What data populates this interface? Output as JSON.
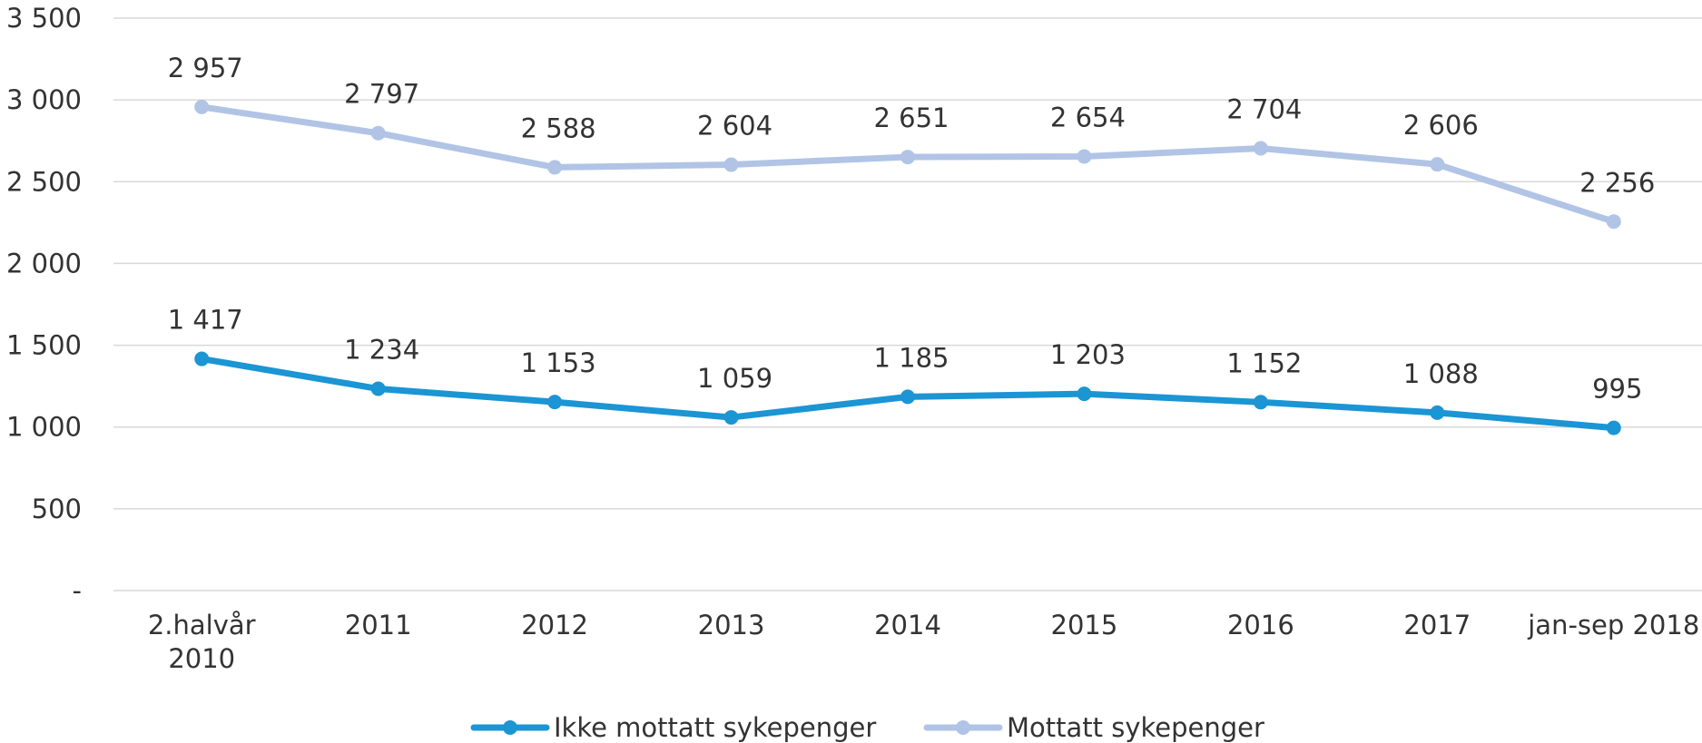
{
  "chart_data": {
    "type": "line",
    "categories": [
      [
        "2.halvår",
        "2010"
      ],
      [
        "2011"
      ],
      [
        "2012"
      ],
      [
        "2013"
      ],
      [
        "2014"
      ],
      [
        "2015"
      ],
      [
        "2016"
      ],
      [
        "2017"
      ],
      [
        "jan-sep 2018"
      ]
    ],
    "series": [
      {
        "name": "Ikke mottatt sykepenger",
        "color": "#1b95d4",
        "values": [
          1417,
          1234,
          1153,
          1059,
          1185,
          1203,
          1152,
          1088,
          995
        ],
        "labels": [
          "1 417",
          "1 234",
          "1 153",
          "1 059",
          "1 185",
          "1 203",
          "1 152",
          "1 088",
          "995"
        ]
      },
      {
        "name": "Mottatt sykepenger",
        "color": "#b1c4e6",
        "values": [
          2957,
          2797,
          2588,
          2604,
          2651,
          2654,
          2704,
          2606,
          2256
        ],
        "labels": [
          "2 957",
          "2 797",
          "2 588",
          "2 604",
          "2 651",
          "2 654",
          "2 704",
          "2 606",
          "2 256"
        ]
      }
    ],
    "y_ticks": [
      {
        "value": 0,
        "label": "-"
      },
      {
        "value": 500,
        "label": "500"
      },
      {
        "value": 1000,
        "label": "1 000"
      },
      {
        "value": 1500,
        "label": "1 500"
      },
      {
        "value": 2000,
        "label": "2 000"
      },
      {
        "value": 2500,
        "label": "2 500"
      },
      {
        "value": 3000,
        "label": "3 000"
      },
      {
        "value": 3500,
        "label": "3 500"
      }
    ],
    "ylim": [
      0,
      3500
    ],
    "grid": true,
    "legend_position": "bottom"
  }
}
